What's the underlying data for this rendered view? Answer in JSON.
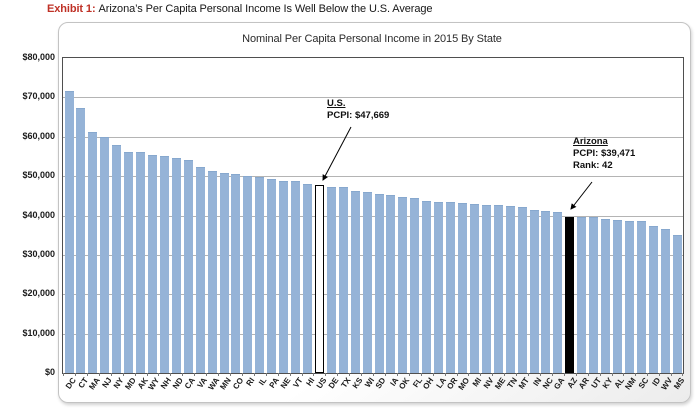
{
  "header": {
    "exhibit_label": "Exhibit 1:",
    "title": "Arizona’s Per Capita Personal Income Is Well Below the U.S. Average"
  },
  "chart_data": {
    "type": "bar",
    "title": "Nominal Per Capita Personal Income in 2015 By State",
    "xlabel": "",
    "ylabel": "",
    "ylim": [
      0,
      80000
    ],
    "grid": "horizontal",
    "y_tick_labels": [
      "$0",
      "$10,000",
      "$20,000",
      "$30,000",
      "$40,000",
      "$50,000",
      "$60,000",
      "$70,000",
      "$80,000"
    ],
    "categories": [
      "DC",
      "CT",
      "MA",
      "NJ",
      "NY",
      "MD",
      "AK",
      "WY",
      "NH",
      "ND",
      "CA",
      "VA",
      "WA",
      "MN",
      "CO",
      "RI",
      "IL",
      "PA",
      "NE",
      "VT",
      "HI",
      "US",
      "DE",
      "TX",
      "KS",
      "WI",
      "SD",
      "IA",
      "OK",
      "FL",
      "OH",
      "LA",
      "OR",
      "MO",
      "MI",
      "NV",
      "ME",
      "TN",
      "MT",
      "IN",
      "NC",
      "GA",
      "AZ",
      "AR",
      "UT",
      "KY",
      "AL",
      "NM",
      "SC",
      "ID",
      "WV",
      "MS"
    ],
    "values": [
      71500,
      66970,
      61030,
      59780,
      57700,
      55970,
      55940,
      55120,
      54820,
      54380,
      53740,
      52140,
      51150,
      50540,
      50410,
      49810,
      49470,
      48980,
      48610,
      48590,
      47750,
      47669,
      47000,
      46950,
      45880,
      45620,
      45280,
      44970,
      44360,
      44100,
      43480,
      43250,
      43200,
      42900,
      42800,
      42480,
      42310,
      42090,
      41800,
      41190,
      40900,
      40550,
      39471,
      39350,
      39310,
      38930,
      38640,
      38450,
      38300,
      37000,
      36300,
      34800
    ],
    "bar_color": "#95b3d7",
    "us_bar": {
      "category": "US",
      "fill": "#ffffff",
      "border": "#000000"
    },
    "az_bar": {
      "category": "AZ",
      "fill": "#000000"
    },
    "annotations": {
      "us": {
        "title": "U.S.",
        "pcpi": "PCPI: $47,669"
      },
      "az": {
        "title": "Arizona",
        "pcpi": "PCPI: $39,471",
        "rank": "Rank: 42"
      }
    }
  }
}
